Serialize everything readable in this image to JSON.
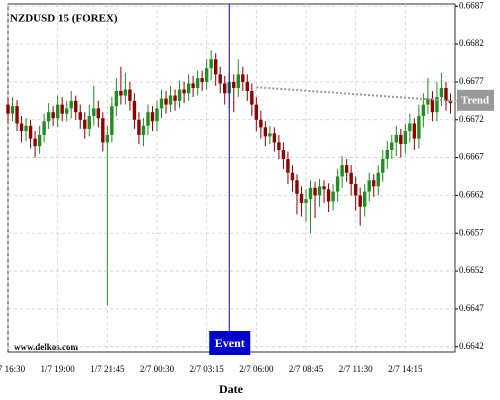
{
  "chart_data": {
    "type": "candlestick",
    "title": "NZDUSD 15 (FOREX)",
    "watermark": "www.delkos.com",
    "x_label": "Date",
    "categories": [
      "1/7 16:30",
      null,
      null,
      null,
      null,
      null,
      null,
      null,
      null,
      null,
      null,
      "1/7 19:00",
      null,
      null,
      null,
      null,
      null,
      null,
      null,
      null,
      null,
      null,
      "1/7 21:45",
      null,
      null,
      null,
      null,
      null,
      null,
      null,
      null,
      null,
      null,
      "2/7 00:30",
      null,
      null,
      null,
      null,
      null,
      null,
      null,
      null,
      null,
      null,
      "2/7 03:15",
      null,
      null,
      null,
      null,
      null,
      null,
      null,
      null,
      null,
      null,
      "2/7 06:00",
      null,
      null,
      null,
      null,
      null,
      null,
      null,
      null,
      null,
      null,
      "2/7 08:45",
      null,
      null,
      null,
      null,
      null,
      null,
      null,
      null,
      null,
      null,
      "2/7 11:30",
      null,
      null,
      null,
      null,
      null,
      null,
      null,
      null,
      null,
      null,
      "2/7 14:15",
      null,
      null,
      null,
      null,
      null,
      null,
      null,
      null,
      null,
      null
    ],
    "open": [
      0.6674,
      0.66728,
      0.66738,
      0.66715,
      0.66705,
      0.66712,
      0.66695,
      0.66685,
      0.667,
      0.66718,
      0.6673,
      0.66722,
      0.6674,
      0.66728,
      0.66735,
      0.66745,
      0.6673,
      0.6672,
      0.66708,
      0.66725,
      0.66735,
      0.66722,
      0.6669,
      0.667,
      0.66738,
      0.66758,
      0.66752,
      0.6676,
      0.66745,
      0.6672,
      0.667,
      0.66712,
      0.6673,
      0.66718,
      0.66735,
      0.66748,
      0.6674,
      0.66752,
      0.66745,
      0.6676,
      0.66755,
      0.66768,
      0.66762,
      0.66775,
      0.6677,
      0.66788,
      0.668,
      0.6678,
      0.66768,
      0.66755,
      0.6677,
      0.66762,
      0.6678,
      0.6677,
      0.66758,
      0.6674,
      0.6672,
      0.6671,
      0.66698,
      0.66702,
      0.6669,
      0.6668,
      0.66668,
      0.6665,
      0.6664,
      0.66622,
      0.6661,
      0.66615,
      0.6663,
      0.6662,
      0.66632,
      0.66628,
      0.66612,
      0.66625,
      0.66645,
      0.6666,
      0.6665,
      0.66635,
      0.6662,
      0.66605,
      0.66625,
      0.6664,
      0.66632,
      0.6665,
      0.66668,
      0.6668,
      0.6669,
      0.667,
      0.66688,
      0.66705,
      0.66715,
      0.66695,
      0.66725,
      0.6674,
      0.66748,
      0.6673,
      0.6675,
      0.66762,
      0.66745
    ],
    "high": [
      0.6675,
      0.6675,
      0.66746,
      0.66725,
      0.66722,
      0.6672,
      0.66705,
      0.66712,
      0.66728,
      0.66742,
      0.66738,
      0.66752,
      0.6675,
      0.66745,
      0.66758,
      0.66752,
      0.6674,
      0.6673,
      0.6674,
      0.66765,
      0.66745,
      0.6673,
      0.66712,
      0.6675,
      0.66775,
      0.6679,
      0.66782,
      0.6677,
      0.66755,
      0.6673,
      0.66722,
      0.6674,
      0.66738,
      0.66745,
      0.6676,
      0.66758,
      0.66765,
      0.6676,
      0.66772,
      0.6677,
      0.6678,
      0.66778,
      0.66785,
      0.66785,
      0.668,
      0.66812,
      0.66808,
      0.6679,
      0.66778,
      0.66782,
      0.6678,
      0.668,
      0.6679,
      0.6678,
      0.66768,
      0.6675,
      0.66732,
      0.66718,
      0.66712,
      0.6671,
      0.667,
      0.6669,
      0.66678,
      0.6666,
      0.66648,
      0.66632,
      0.66628,
      0.6664,
      0.66638,
      0.66642,
      0.6664,
      0.66636,
      0.66635,
      0.66655,
      0.66672,
      0.66668,
      0.6666,
      0.66645,
      0.6663,
      0.66635,
      0.6665,
      0.66648,
      0.6666,
      0.6668,
      0.66692,
      0.667,
      0.66712,
      0.66708,
      0.66715,
      0.66728,
      0.66722,
      0.6674,
      0.66755,
      0.66775,
      0.66758,
      0.6677,
      0.66782,
      0.6677,
      0.66755
    ],
    "low": [
      0.66715,
      0.66718,
      0.66705,
      0.6669,
      0.66692,
      0.66682,
      0.6667,
      0.66675,
      0.6669,
      0.66708,
      0.66712,
      0.6671,
      0.66718,
      0.66718,
      0.66722,
      0.6672,
      0.66708,
      0.66695,
      0.66698,
      0.66712,
      0.6671,
      0.66678,
      0.66475,
      0.6669,
      0.66725,
      0.6674,
      0.6674,
      0.66732,
      0.66708,
      0.66688,
      0.66685,
      0.667,
      0.66705,
      0.66705,
      0.66722,
      0.66728,
      0.6673,
      0.66732,
      0.66735,
      0.66742,
      0.66745,
      0.6675,
      0.66752,
      0.66758,
      0.6676,
      0.66772,
      0.66765,
      0.66755,
      0.6674,
      0.66735,
      0.6673,
      0.6675,
      0.66758,
      0.66745,
      0.66725,
      0.66705,
      0.66695,
      0.66685,
      0.66688,
      0.66678,
      0.66668,
      0.66655,
      0.66635,
      0.66625,
      0.66595,
      0.66592,
      0.66585,
      0.6657,
      0.6659,
      0.66605,
      0.6661,
      0.66598,
      0.666,
      0.66612,
      0.6663,
      0.66638,
      0.6662,
      0.666,
      0.6658,
      0.66592,
      0.66612,
      0.66618,
      0.6662,
      0.66638,
      0.66655,
      0.66668,
      0.66672,
      0.6667,
      0.66675,
      0.6669,
      0.6668,
      0.66682,
      0.6671,
      0.66728,
      0.66718,
      0.66718,
      0.66738,
      0.66732,
      0.66728
    ],
    "close": [
      0.66728,
      0.66738,
      0.66715,
      0.66705,
      0.66712,
      0.66695,
      0.66685,
      0.667,
      0.66718,
      0.6673,
      0.66722,
      0.6674,
      0.66728,
      0.66735,
      0.66745,
      0.6673,
      0.6672,
      0.66708,
      0.66725,
      0.66735,
      0.66722,
      0.6669,
      0.667,
      0.66738,
      0.66758,
      0.66752,
      0.6676,
      0.66745,
      0.6672,
      0.667,
      0.66712,
      0.6673,
      0.66718,
      0.66735,
      0.66748,
      0.6674,
      0.66752,
      0.66745,
      0.6676,
      0.66755,
      0.66768,
      0.66762,
      0.66775,
      0.6677,
      0.66788,
      0.668,
      0.6678,
      0.66768,
      0.66755,
      0.6677,
      0.66762,
      0.6678,
      0.6677,
      0.66758,
      0.6674,
      0.6672,
      0.6671,
      0.66698,
      0.66702,
      0.6669,
      0.6668,
      0.66668,
      0.6665,
      0.6664,
      0.66622,
      0.6661,
      0.66615,
      0.6663,
      0.6662,
      0.66632,
      0.66628,
      0.66612,
      0.66625,
      0.66645,
      0.6666,
      0.6665,
      0.66635,
      0.6662,
      0.66605,
      0.66625,
      0.6664,
      0.66632,
      0.6665,
      0.66668,
      0.6668,
      0.6669,
      0.667,
      0.66688,
      0.66705,
      0.66715,
      0.66695,
      0.66725,
      0.6674,
      0.66748,
      0.6673,
      0.6675,
      0.66762,
      0.66745,
      0.66742
    ],
    "up_color": "#228b22",
    "down_color": "#8b0000",
    "ylim": [
      0.66413,
      0.66873
    ],
    "yticks": [
      0.6687,
      0.6682,
      0.6677,
      0.6672,
      0.6667,
      0.6662,
      0.6657,
      0.6652,
      0.6647,
      0.6642
    ],
    "grid": true,
    "event": {
      "label": "Event",
      "category_index": 49,
      "color": "#0000cc"
    },
    "trend": {
      "label": "Trend",
      "start_index": 55,
      "start_value": 0.66763,
      "end_index": 98,
      "end_value": 0.66745,
      "color": "#999999"
    }
  }
}
